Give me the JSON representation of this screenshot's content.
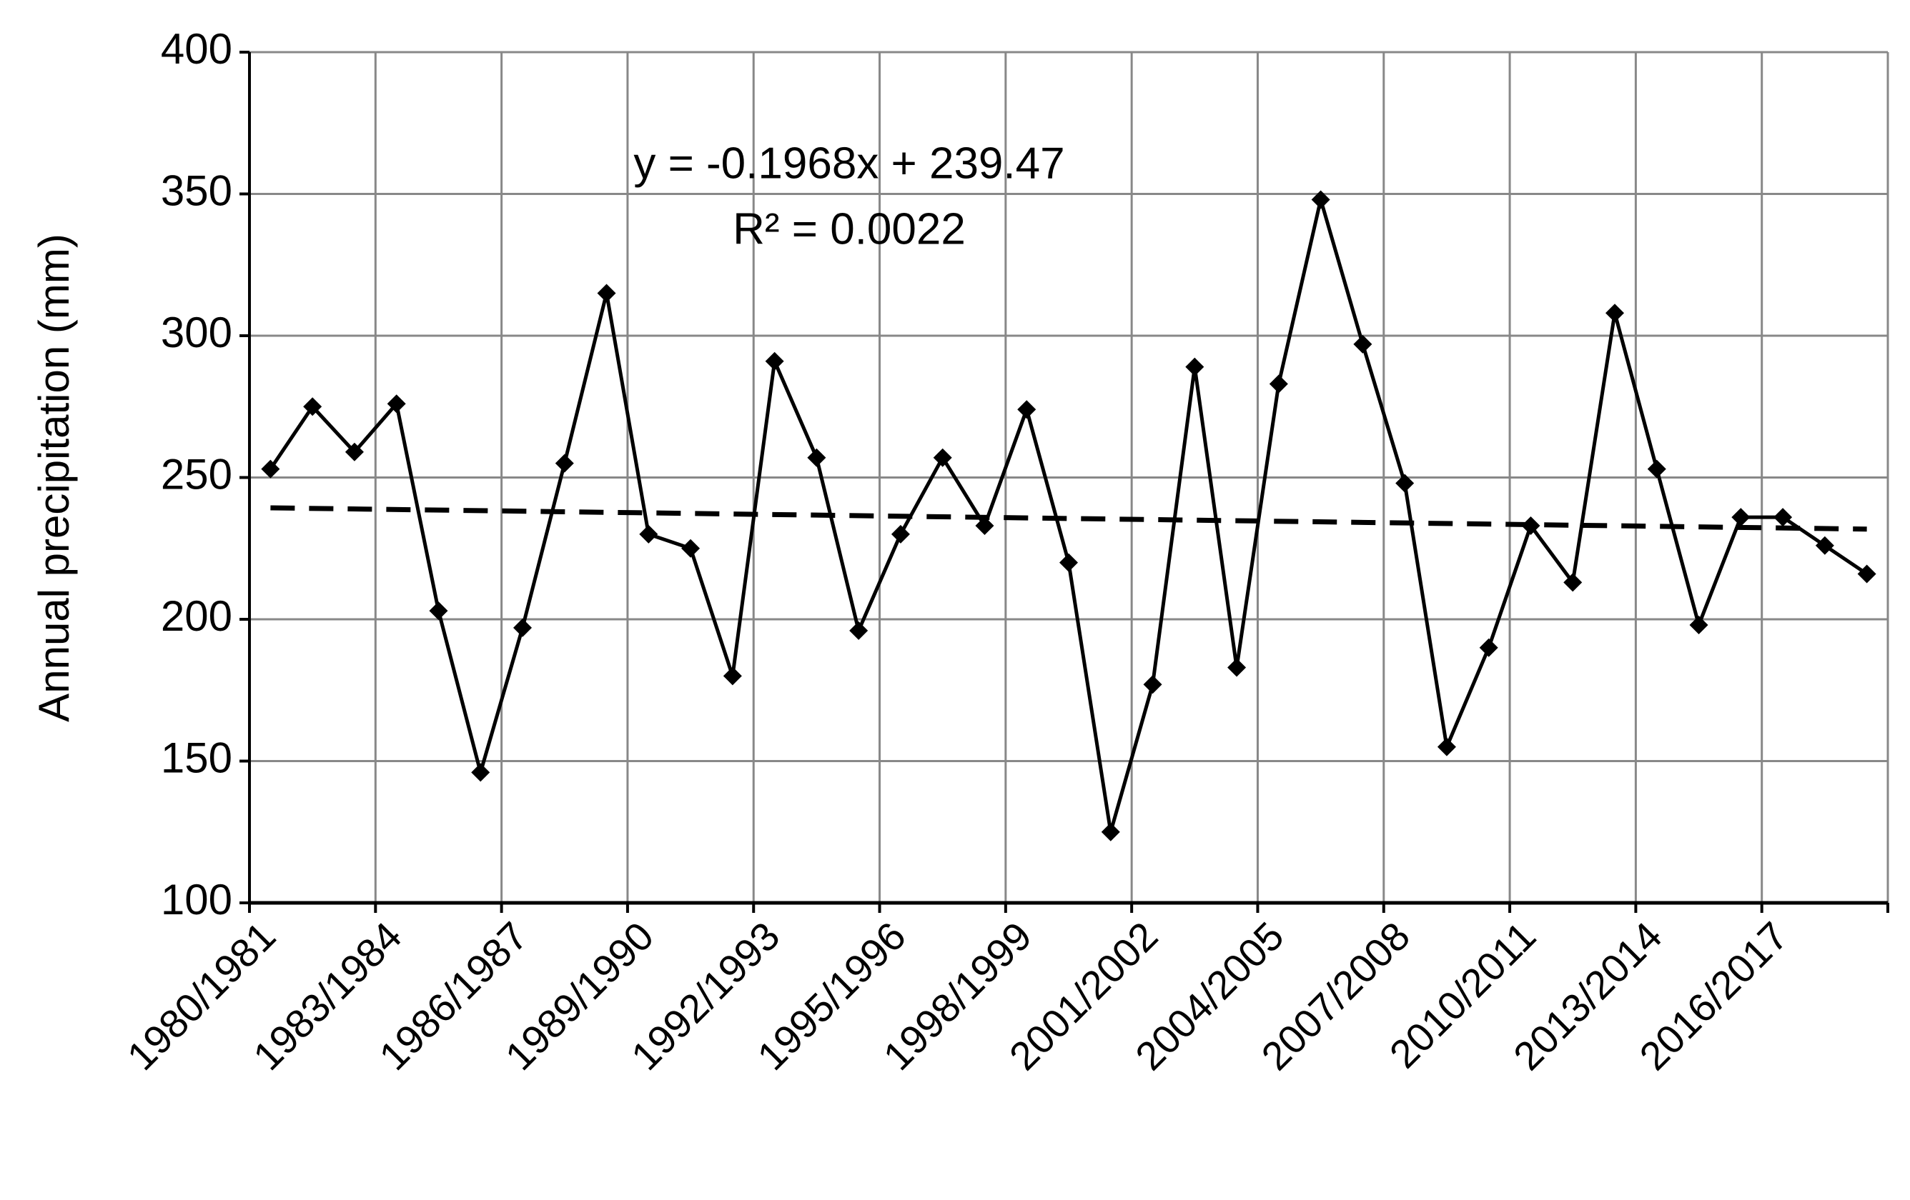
{
  "chart_data": {
    "type": "line",
    "y_label": "Annual precipitation (mm)",
    "annotation": [
      "y = -0.1968x + 239.47",
      "R² = 0.0022"
    ],
    "categories": [
      "1980/1981",
      null,
      null,
      "1983/1984",
      null,
      null,
      "1986/1987",
      null,
      null,
      "1989/1990",
      null,
      null,
      "1992/1993",
      null,
      null,
      "1995/1996",
      null,
      null,
      "1998/1999",
      null,
      null,
      "2001/2002",
      null,
      null,
      "2004/2005",
      null,
      null,
      "2007/2008",
      null,
      null,
      "2010/2011",
      null,
      null,
      "2013/2014",
      null,
      null,
      "2016/2017",
      null,
      null
    ],
    "values": [
      253,
      275,
      259,
      276,
      203,
      146,
      197,
      255,
      315,
      230,
      225,
      180,
      291,
      257,
      196,
      230,
      257,
      233,
      274,
      220,
      125,
      177,
      289,
      183,
      283,
      348,
      297,
      248,
      155,
      190,
      233,
      213,
      308,
      253,
      198,
      236,
      236,
      226,
      216
    ],
    "color": "#000000",
    "trendline": {
      "values": [
        239.3,
        231.8
      ],
      "color": "#000000",
      "dashed": true
    },
    "ylim": [
      100,
      400
    ],
    "yticks": [
      100,
      150,
      200,
      250,
      300,
      350,
      400
    ],
    "grid": true
  }
}
